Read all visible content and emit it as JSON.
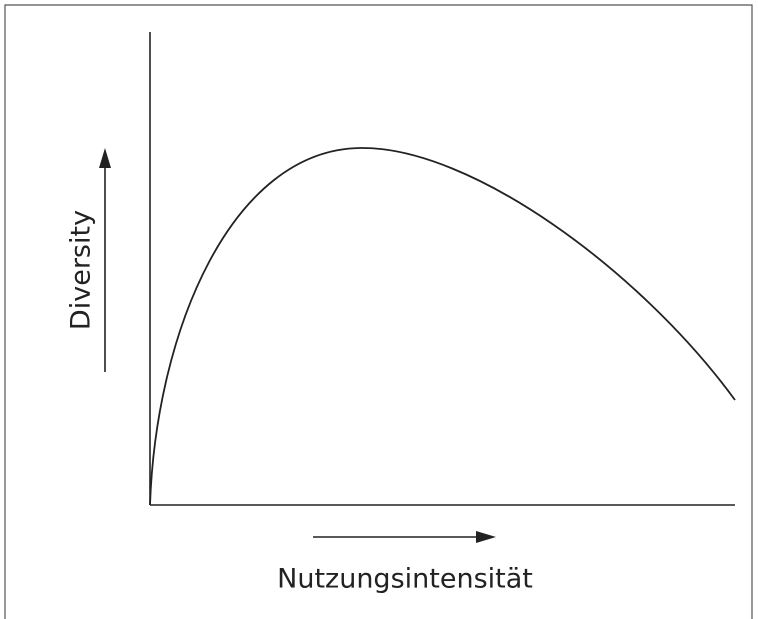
{
  "y_axis_label": "Diversity",
  "x_axis_label": "Nutzungsintensität"
}
